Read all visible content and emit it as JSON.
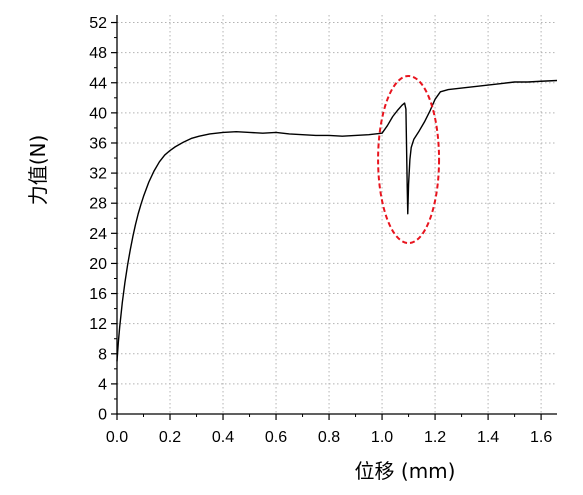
{
  "chart_data": {
    "type": "line",
    "title": "",
    "xlabel": "位移 (mm)",
    "ylabel": "力值(N)",
    "xlim": [
      0.0,
      1.66
    ],
    "ylim": [
      0,
      53
    ],
    "x_ticks": [
      0.0,
      0.2,
      0.4,
      0.6,
      0.8,
      1.0,
      1.2,
      1.4,
      1.6
    ],
    "x_tick_labels": [
      "0.0",
      "0.2",
      "0.4",
      "0.6",
      "0.8",
      "1.0",
      "1.2",
      "1.4",
      "1.6"
    ],
    "y_ticks": [
      0,
      4,
      8,
      12,
      16,
      20,
      24,
      28,
      32,
      36,
      40,
      44,
      48,
      52
    ],
    "y_tick_labels": [
      "0",
      "4",
      "8",
      "12",
      "16",
      "20",
      "24",
      "28",
      "32",
      "36",
      "40",
      "44",
      "48",
      "52"
    ],
    "grid": true,
    "legend": "none",
    "series": [
      {
        "color": "#000000",
        "points": [
          [
            0.0,
            7.0
          ],
          [
            0.005,
            9.5
          ],
          [
            0.01,
            11.5
          ],
          [
            0.02,
            14.8
          ],
          [
            0.03,
            17.5
          ],
          [
            0.04,
            19.8
          ],
          [
            0.05,
            21.8
          ],
          [
            0.06,
            23.6
          ],
          [
            0.07,
            25.2
          ],
          [
            0.08,
            26.6
          ],
          [
            0.09,
            27.8
          ],
          [
            0.1,
            28.9
          ],
          [
            0.12,
            30.8
          ],
          [
            0.14,
            32.3
          ],
          [
            0.16,
            33.5
          ],
          [
            0.18,
            34.4
          ],
          [
            0.2,
            35.0
          ],
          [
            0.22,
            35.5
          ],
          [
            0.25,
            36.1
          ],
          [
            0.28,
            36.6
          ],
          [
            0.31,
            36.9
          ],
          [
            0.35,
            37.2
          ],
          [
            0.4,
            37.4
          ],
          [
            0.45,
            37.5
          ],
          [
            0.5,
            37.4
          ],
          [
            0.55,
            37.3
          ],
          [
            0.6,
            37.4
          ],
          [
            0.65,
            37.2
          ],
          [
            0.7,
            37.1
          ],
          [
            0.75,
            37.0
          ],
          [
            0.8,
            37.0
          ],
          [
            0.85,
            36.9
          ],
          [
            0.9,
            37.0
          ],
          [
            0.95,
            37.1
          ],
          [
            1.0,
            37.3
          ],
          [
            1.02,
            38.3
          ],
          [
            1.04,
            39.5
          ],
          [
            1.06,
            40.4
          ],
          [
            1.075,
            41.0
          ],
          [
            1.085,
            41.3
          ],
          [
            1.09,
            40.5
          ],
          [
            1.095,
            30.0
          ],
          [
            1.097,
            26.6
          ],
          [
            1.1,
            30.5
          ],
          [
            1.105,
            33.8
          ],
          [
            1.11,
            35.4
          ],
          [
            1.12,
            36.5
          ],
          [
            1.14,
            37.6
          ],
          [
            1.16,
            38.8
          ],
          [
            1.18,
            40.2
          ],
          [
            1.2,
            41.8
          ],
          [
            1.22,
            42.8
          ],
          [
            1.25,
            43.1
          ],
          [
            1.3,
            43.3
          ],
          [
            1.35,
            43.5
          ],
          [
            1.4,
            43.7
          ],
          [
            1.45,
            43.9
          ],
          [
            1.5,
            44.1
          ],
          [
            1.55,
            44.1
          ],
          [
            1.6,
            44.2
          ],
          [
            1.66,
            44.3
          ]
        ]
      }
    ],
    "annotation": {
      "shape": "dashed ellipse",
      "color": "#e8141e",
      "center": [
        1.1,
        33.8
      ],
      "radius_x": 0.115,
      "radius_y": 11.1
    }
  }
}
